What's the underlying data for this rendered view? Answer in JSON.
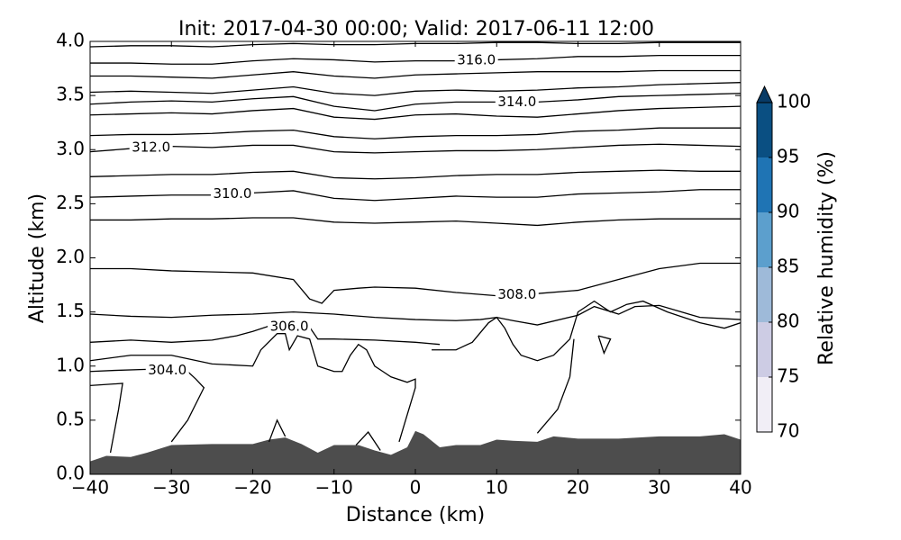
{
  "chart_data": {
    "type": "contour",
    "title": "Init: 2017-04-30 00:00; Valid: 2017-06-11 12:00",
    "xlabel": "Distance (km)",
    "ylabel": "Altitude (km)",
    "xlim": [
      -40,
      40
    ],
    "ylim": [
      0,
      4
    ],
    "xticks": [
      {
        "value": -40,
        "label": "−40"
      },
      {
        "value": -30,
        "label": "−30"
      },
      {
        "value": -20,
        "label": "−20"
      },
      {
        "value": -10,
        "label": "−10"
      },
      0,
      10,
      20,
      30,
      40
    ],
    "yticks": [
      {
        "value": 0,
        "label": "0.0"
      },
      {
        "value": 0.5,
        "label": "0.5"
      },
      {
        "value": 1,
        "label": "1.0"
      },
      {
        "value": 1.5,
        "label": "1.5"
      },
      {
        "value": 2,
        "label": "2.0"
      },
      {
        "value": 2.5,
        "label": "2.5"
      },
      {
        "value": 3,
        "label": "3.0"
      },
      {
        "value": 3.5,
        "label": "3.5"
      },
      {
        "value": 4,
        "label": "4.0"
      }
    ],
    "terrain": {
      "color": "#4d4d4d",
      "x": [
        -40,
        -38,
        -35,
        -33,
        -30,
        -25,
        -20,
        -18,
        -16,
        -14,
        -12,
        -10,
        -7,
        -5,
        -3,
        -1,
        0,
        1,
        3,
        5,
        8,
        10,
        12,
        15,
        17,
        20,
        25,
        30,
        35,
        38,
        40
      ],
      "values": [
        0.12,
        0.17,
        0.16,
        0.2,
        0.27,
        0.28,
        0.28,
        0.32,
        0.34,
        0.28,
        0.2,
        0.27,
        0.27,
        0.22,
        0.18,
        0.25,
        0.4,
        0.37,
        0.25,
        0.27,
        0.27,
        0.32,
        0.31,
        0.3,
        0.35,
        0.33,
        0.33,
        0.35,
        0.35,
        0.37,
        0.32
      ]
    },
    "contour_color": "#000000",
    "contours": [
      {
        "x": [
          -40,
          -35,
          -30,
          -25,
          -20,
          -15,
          -10,
          -5,
          0,
          5,
          10,
          15,
          20,
          25,
          30,
          35,
          40
        ],
        "values": [
          3.95,
          3.96,
          3.96,
          3.95,
          3.97,
          3.98,
          3.97,
          3.97,
          3.98,
          3.98,
          3.99,
          3.99,
          3.98,
          3.98,
          3.99,
          3.99,
          3.99
        ]
      },
      {
        "label": "316.0",
        "x": [
          -40,
          -35,
          -30,
          -25,
          -20,
          -15,
          -10,
          -5,
          0,
          5,
          10,
          15,
          20,
          25,
          30,
          35,
          40
        ],
        "values": [
          3.8,
          3.8,
          3.79,
          3.79,
          3.82,
          3.84,
          3.83,
          3.81,
          3.82,
          3.82,
          3.83,
          3.84,
          3.86,
          3.86,
          3.87,
          3.87,
          3.87
        ]
      },
      {
        "x": [
          -40,
          -35,
          -30,
          -25,
          -20,
          -15,
          -10,
          -5,
          0,
          5,
          10,
          15,
          20,
          25,
          30,
          35,
          40
        ],
        "values": [
          3.68,
          3.68,
          3.67,
          3.66,
          3.69,
          3.72,
          3.68,
          3.66,
          3.69,
          3.7,
          3.71,
          3.72,
          3.72,
          3.72,
          3.73,
          3.73,
          3.73
        ]
      },
      {
        "x": [
          -40,
          -35,
          -30,
          -25,
          -20,
          -15,
          -10,
          -5,
          0,
          5,
          10,
          15,
          20,
          25,
          30,
          35,
          40
        ],
        "values": [
          3.53,
          3.54,
          3.53,
          3.52,
          3.55,
          3.58,
          3.52,
          3.5,
          3.54,
          3.55,
          3.54,
          3.55,
          3.57,
          3.58,
          3.6,
          3.61,
          3.62
        ]
      },
      {
        "label": "314.0",
        "x": [
          -40,
          -35,
          -30,
          -25,
          -20,
          -15,
          -10,
          -5,
          0,
          5,
          10,
          15,
          20,
          25,
          30,
          35,
          40
        ],
        "values": [
          3.42,
          3.44,
          3.45,
          3.44,
          3.47,
          3.49,
          3.4,
          3.36,
          3.42,
          3.44,
          3.44,
          3.44,
          3.46,
          3.49,
          3.5,
          3.51,
          3.52
        ]
      },
      {
        "x": [
          -40,
          -35,
          -30,
          -25,
          -20,
          -15,
          -10,
          -5,
          0,
          5,
          10,
          15,
          20,
          25,
          30,
          35,
          40
        ],
        "values": [
          3.32,
          3.33,
          3.34,
          3.33,
          3.36,
          3.38,
          3.3,
          3.28,
          3.32,
          3.33,
          3.31,
          3.3,
          3.33,
          3.36,
          3.38,
          3.39,
          3.4
        ]
      },
      {
        "x": [
          -40,
          -35,
          -30,
          -25,
          -20,
          -15,
          -10,
          -5,
          0,
          5,
          10,
          15,
          20,
          25,
          30,
          35,
          40
        ],
        "values": [
          3.13,
          3.14,
          3.14,
          3.15,
          3.17,
          3.18,
          3.12,
          3.1,
          3.12,
          3.13,
          3.13,
          3.14,
          3.17,
          3.18,
          3.2,
          3.2,
          3.2
        ]
      },
      {
        "label": "312.0",
        "x": [
          -40,
          -35,
          -30,
          -25,
          -20,
          -15,
          -10,
          -5,
          0,
          5,
          10,
          15,
          20,
          25,
          30,
          35,
          40
        ],
        "values": [
          2.98,
          3.01,
          3.03,
          3.02,
          3.04,
          3.04,
          2.98,
          2.97,
          2.98,
          2.99,
          2.99,
          3.0,
          3.02,
          3.04,
          3.05,
          3.04,
          3.03
        ]
      },
      {
        "x": [
          -40,
          -35,
          -30,
          -25,
          -20,
          -15,
          -10,
          -5,
          0,
          5,
          10,
          15,
          20,
          25,
          30,
          35,
          40
        ],
        "values": [
          2.75,
          2.76,
          2.77,
          2.77,
          2.79,
          2.8,
          2.74,
          2.73,
          2.74,
          2.76,
          2.77,
          2.77,
          2.79,
          2.8,
          2.81,
          2.8,
          2.8
        ]
      },
      {
        "label": "310.0",
        "x": [
          -40,
          -35,
          -30,
          -25,
          -20,
          -15,
          -10,
          -5,
          0,
          5,
          10,
          15,
          20,
          25,
          30,
          35,
          40
        ],
        "values": [
          2.56,
          2.57,
          2.58,
          2.58,
          2.6,
          2.62,
          2.55,
          2.53,
          2.55,
          2.57,
          2.56,
          2.56,
          2.59,
          2.6,
          2.61,
          2.63,
          2.63
        ]
      },
      {
        "x": [
          -40,
          -35,
          -30,
          -25,
          -20,
          -15,
          -10,
          -5,
          0,
          5,
          10,
          15,
          20,
          25,
          30,
          35,
          40
        ],
        "values": [
          2.35,
          2.35,
          2.36,
          2.36,
          2.37,
          2.37,
          2.33,
          2.32,
          2.33,
          2.34,
          2.32,
          2.3,
          2.33,
          2.35,
          2.36,
          2.36,
          2.36
        ]
      },
      {
        "label": "308.0",
        "x": [
          -40,
          -35,
          -30,
          -25,
          -20,
          -15,
          -13,
          -11.5,
          -10,
          -7,
          -5,
          0,
          5,
          10,
          15,
          20,
          25,
          30,
          35,
          40
        ],
        "values": [
          1.9,
          1.9,
          1.88,
          1.87,
          1.86,
          1.8,
          1.62,
          1.58,
          1.7,
          1.72,
          1.73,
          1.72,
          1.68,
          1.65,
          1.67,
          1.7,
          1.8,
          1.9,
          1.95,
          1.95
        ]
      },
      {
        "x": [
          -40,
          -35,
          -30,
          -25,
          -20,
          -15,
          -10,
          -5,
          0,
          5,
          8,
          10,
          12,
          15,
          20,
          22,
          25,
          27,
          30,
          35,
          40
        ],
        "values": [
          1.48,
          1.46,
          1.45,
          1.47,
          1.48,
          1.5,
          1.48,
          1.45,
          1.43,
          1.42,
          1.43,
          1.45,
          1.42,
          1.38,
          1.47,
          1.55,
          1.48,
          1.55,
          1.56,
          1.45,
          1.43
        ]
      },
      {
        "label": "306.0",
        "x": [
          -40,
          -35,
          -30,
          -25,
          -22,
          -20,
          -18,
          -13,
          -12,
          -10,
          -5,
          0,
          3
        ],
        "values": [
          1.22,
          1.24,
          1.22,
          1.24,
          1.28,
          1.32,
          1.37,
          1.36,
          1.25,
          1.25,
          1.24,
          1.22,
          1.2
        ]
      },
      {
        "label": "304.0",
        "x": [
          -40,
          -37,
          -33,
          -28,
          -27,
          -26,
          -28,
          -30
        ],
        "values": [
          0.95,
          0.96,
          0.97,
          0.95,
          0.88,
          0.8,
          0.5,
          0.3
        ]
      },
      {
        "x": [
          -40,
          -36,
          -36.5,
          -37.5
        ],
        "values": [
          0.82,
          0.84,
          0.6,
          0.2
        ]
      },
      {
        "x": [
          -40,
          -35,
          -30,
          -25,
          -20,
          -19,
          -17,
          -16,
          -15.5,
          -14.5,
          -13,
          -12,
          -10,
          -9,
          -8,
          -7,
          -6,
          -5,
          -4,
          -3,
          -1,
          0,
          0,
          -1,
          -2
        ],
        "values": [
          1.05,
          1.1,
          1.1,
          1.02,
          1.0,
          1.15,
          1.3,
          1.3,
          1.15,
          1.28,
          1.25,
          1.0,
          0.95,
          0.95,
          1.1,
          1.2,
          1.15,
          1.0,
          0.95,
          0.9,
          0.85,
          0.88,
          0.8,
          0.55,
          0.3
        ]
      },
      {
        "x": [
          2,
          5,
          7,
          9,
          10,
          11,
          12,
          13,
          15,
          17,
          19,
          20,
          22,
          24,
          26,
          28,
          31,
          35,
          38,
          40
        ],
        "values": [
          1.15,
          1.15,
          1.22,
          1.4,
          1.45,
          1.35,
          1.2,
          1.1,
          1.05,
          1.1,
          1.25,
          1.5,
          1.6,
          1.5,
          1.57,
          1.6,
          1.5,
          1.4,
          1.35,
          1.4
        ]
      },
      {
        "x": [
          19.5,
          19,
          17.5,
          15
        ],
        "values": [
          1.25,
          0.9,
          0.6,
          0.38
        ]
      },
      {
        "x": [
          22.5,
          24,
          23.2,
          22.5
        ],
        "values": [
          1.28,
          1.25,
          1.12,
          1.28
        ]
      },
      {
        "x": [
          -18,
          -17,
          -16
        ],
        "values": [
          0.3,
          0.5,
          0.35
        ]
      },
      {
        "x": [
          -7.3,
          -5.8,
          -4.3
        ],
        "values": [
          0.27,
          0.39,
          0.22
        ]
      }
    ],
    "colorbar": {
      "label": "Relative humidity (%)",
      "ticks": [
        70,
        75,
        80,
        85,
        90,
        95,
        100
      ],
      "colors": [
        "#f1eef6",
        "#cdcce4",
        "#9ebad9",
        "#5c9fcd",
        "#1f74b4",
        "#0a4f82"
      ],
      "over_color": "#083b66"
    }
  }
}
